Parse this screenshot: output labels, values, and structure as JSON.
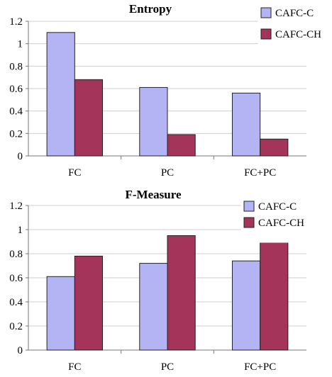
{
  "colors": {
    "series_1": "#b4b4f5",
    "series_2": "#a4345a",
    "edge": "#222222",
    "grid": "#cfcfcf",
    "axis": "#777777"
  },
  "chart_data": [
    {
      "type": "bar",
      "title": "Entropy",
      "xlabel": "",
      "ylabel": "",
      "categories": [
        "FC",
        "PC",
        "FC+PC"
      ],
      "series": [
        {
          "name": "CAFC-C",
          "values": [
            1.1,
            0.61,
            0.56
          ]
        },
        {
          "name": "CAFC-CH",
          "values": [
            0.68,
            0.19,
            0.15
          ]
        }
      ],
      "ylim": [
        0,
        1.2
      ],
      "yticks": [
        0,
        0.2,
        0.4,
        0.6,
        0.8,
        1,
        1.2
      ],
      "ytick_labels": [
        "0",
        "0.2",
        "0.4",
        "0.6",
        "0.8",
        "1",
        "1.2"
      ],
      "grid": true,
      "legend": "top-right"
    },
    {
      "type": "bar",
      "title": "F-Measure",
      "xlabel": "",
      "ylabel": "",
      "categories": [
        "FC",
        "PC",
        "FC+PC"
      ],
      "series": [
        {
          "name": "CAFC-C",
          "values": [
            0.61,
            0.72,
            0.74
          ]
        },
        {
          "name": "CAFC-CH",
          "values": [
            0.78,
            0.95,
            0.96
          ]
        }
      ],
      "ylim": [
        0,
        1.2
      ],
      "yticks": [
        0,
        0.2,
        0.4,
        0.6,
        0.8,
        1,
        1.2
      ],
      "ytick_labels": [
        "0",
        "0.2",
        "0.4",
        "0.6",
        "0.8",
        "1",
        "1.2"
      ],
      "grid": true,
      "legend": "top-right"
    }
  ]
}
